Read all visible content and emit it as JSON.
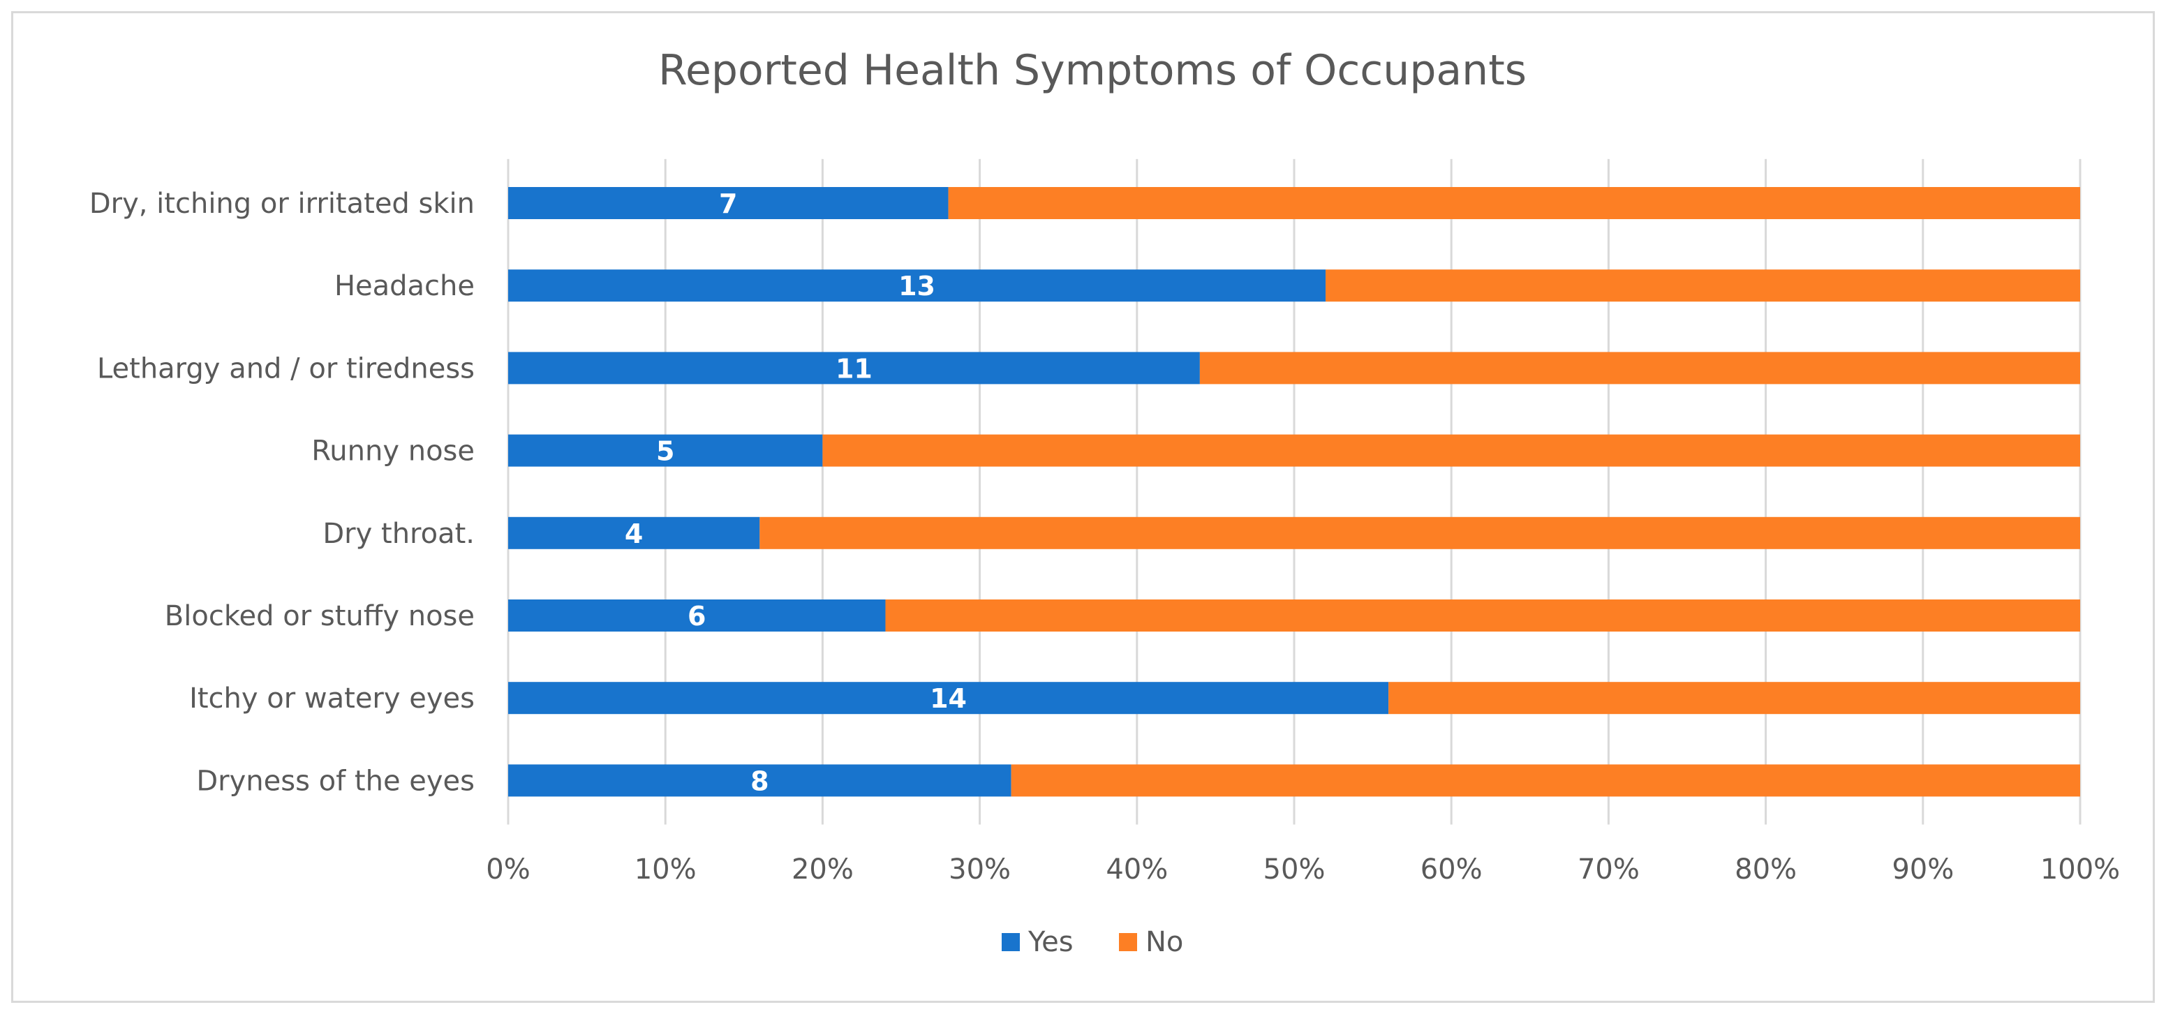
{
  "chart_data": {
    "type": "bar",
    "orientation": "horizontal",
    "stacking": "percent",
    "title": "Reported Health Symptoms of Occupants",
    "xlabel": "",
    "ylabel": "",
    "xlim": [
      0,
      100
    ],
    "x_ticks": [
      "0%",
      "10%",
      "20%",
      "30%",
      "40%",
      "50%",
      "60%",
      "70%",
      "80%",
      "90%",
      "100%"
    ],
    "grid": true,
    "legend_position": "bottom",
    "categories": [
      "Dry, itching or irritated skin",
      "Headache",
      "Lethargy and / or tiredness",
      "Runny nose",
      "Dry throat.",
      "Blocked or stuffy nose",
      "Itchy or watery eyes",
      "Dryness of the eyes"
    ],
    "series": [
      {
        "name": "Yes",
        "color": "#1874cd",
        "values": [
          7,
          13,
          11,
          5,
          4,
          6,
          14,
          8
        ],
        "data_labels": [
          "7",
          "13",
          "11",
          "5",
          "4",
          "6",
          "14",
          "8"
        ]
      },
      {
        "name": "No",
        "color": "#fd7f24",
        "values": [
          18,
          12,
          14,
          20,
          21,
          19,
          11,
          17
        ]
      }
    ]
  }
}
